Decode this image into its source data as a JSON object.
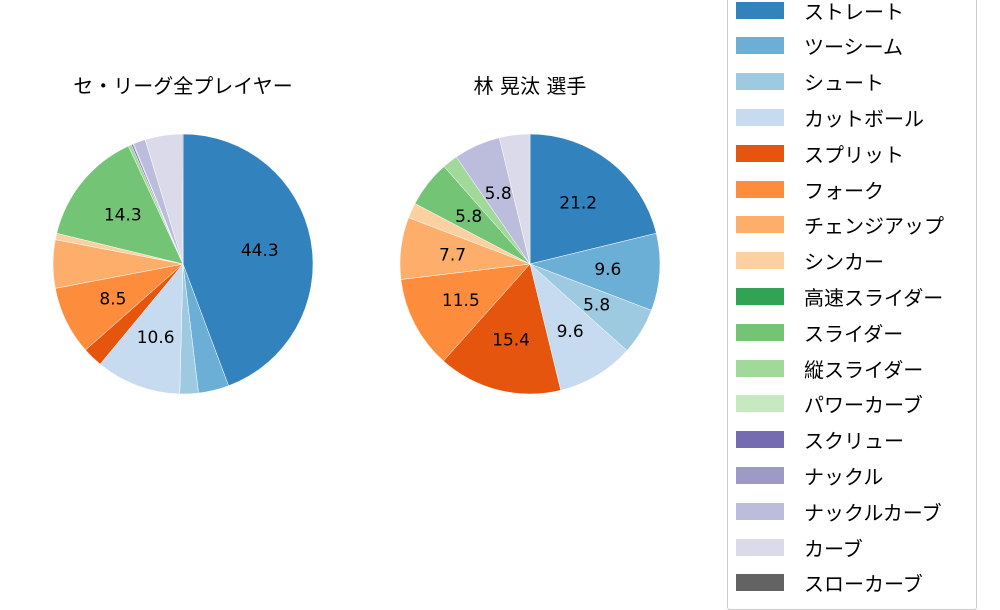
{
  "chart_data": [
    {
      "type": "pie",
      "title": "セ・リーグ全プレイヤー",
      "categories": [
        "ストレート",
        "ツーシーム",
        "シュート",
        "カットボール",
        "スプリット",
        "フォーク",
        "チェンジアップ",
        "シンカー",
        "高速スライダー",
        "スライダー",
        "縦スライダー",
        "パワーカーブ",
        "スクリュー",
        "ナックル",
        "ナックルカーブ",
        "カーブ",
        "スローカーブ"
      ],
      "values": [
        44.3,
        3.8,
        2.3,
        10.6,
        2.5,
        8.5,
        6.0,
        0.8,
        0.0,
        14.3,
        0.4,
        0.0,
        0.2,
        0.1,
        1.5,
        4.6,
        0.1
      ],
      "labels_shown": {
        "ストレート": "44.3",
        "カットボール": "10.6",
        "フォーク": "8.5",
        "スライダー": "14.3"
      },
      "start_angle": 90,
      "direction": "clockwise"
    },
    {
      "type": "pie",
      "title": "林 晃汰  選手",
      "categories": [
        "ストレート",
        "ツーシーム",
        "シュート",
        "カットボール",
        "スプリット",
        "フォーク",
        "チェンジアップ",
        "シンカー",
        "高速スライダー",
        "スライダー",
        "縦スライダー",
        "パワーカーブ",
        "スクリュー",
        "ナックル",
        "ナックルカーブ",
        "カーブ",
        "スローカーブ"
      ],
      "values": [
        21.2,
        9.6,
        5.8,
        9.6,
        15.4,
        11.5,
        7.7,
        1.9,
        0.0,
        5.8,
        1.9,
        0.0,
        0.0,
        0.0,
        5.8,
        3.8,
        0.0
      ],
      "labels_shown": {
        "ストレート": "21.2",
        "ツーシーム": "9.6",
        "シュート": "5.8",
        "カットボール": "9.6",
        "スプリット": "15.4",
        "フォーク": "11.5",
        "チェンジアップ": "7.7",
        "スライダー": "5.8",
        "ナックルカーブ": "5.8"
      },
      "start_angle": 90,
      "direction": "clockwise"
    }
  ],
  "titles": {
    "left": "セ・リーグ全プレイヤー",
    "right": "林 晃汰  選手"
  },
  "legend": {
    "position": "right",
    "items": [
      {
        "label": "ストレート",
        "color": "#3182bd"
      },
      {
        "label": "ツーシーム",
        "color": "#6baed6"
      },
      {
        "label": "シュート",
        "color": "#9ecae1"
      },
      {
        "label": "カットボール",
        "color": "#c6dbef"
      },
      {
        "label": "スプリット",
        "color": "#e6550d"
      },
      {
        "label": "フォーク",
        "color": "#fd8d3c"
      },
      {
        "label": "チェンジアップ",
        "color": "#fdae6b"
      },
      {
        "label": "シンカー",
        "color": "#fdd0a2"
      },
      {
        "label": "高速スライダー",
        "color": "#31a354"
      },
      {
        "label": "スライダー",
        "color": "#74c476"
      },
      {
        "label": "縦スライダー",
        "color": "#a1d99b"
      },
      {
        "label": "パワーカーブ",
        "color": "#c7e9c0"
      },
      {
        "label": "スクリュー",
        "color": "#756bb1"
      },
      {
        "label": "ナックル",
        "color": "#9e9ac8"
      },
      {
        "label": "ナックルカーブ",
        "color": "#bcbddc"
      },
      {
        "label": "カーブ",
        "color": "#dadaeb"
      },
      {
        "label": "スローカーブ",
        "color": "#636363"
      }
    ]
  }
}
